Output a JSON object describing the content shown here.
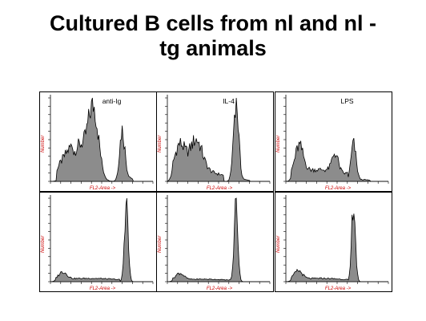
{
  "title": {
    "line1": "Cultured B cells from nl and nl -",
    "line2": "tg animals"
  },
  "colors": {
    "fill": "#8c8c8c",
    "outline": "#000000",
    "axis_label": "#cc0000",
    "frame": "#000000"
  },
  "chart_data": [
    {
      "type": "area",
      "row": 1,
      "col": 1,
      "label": "anti-Ig",
      "xlabel": "FL2-Area ->",
      "ylabel": "Number",
      "xlim": [
        0,
        1
      ],
      "ylim": [
        0,
        1
      ],
      "peaks": [
        {
          "center": 0.28,
          "width": 0.08,
          "height": 0.42
        },
        {
          "center": 0.42,
          "width": 0.05,
          "height": 0.82
        },
        {
          "center": 0.7,
          "width": 0.025,
          "height": 0.62
        }
      ],
      "baseline": [
        {
          "from": 0.06,
          "to": 0.22,
          "level": 0.22
        },
        {
          "from": 0.72,
          "to": 0.8,
          "level": 0.05
        }
      ]
    },
    {
      "type": "area",
      "row": 1,
      "col": 2,
      "label": "IL-4",
      "xlabel": "FL2-Area ->",
      "ylabel": "Number",
      "xlim": [
        0,
        1
      ],
      "ylim": [
        0,
        1
      ],
      "peaks": [
        {
          "center": 0.12,
          "width": 0.05,
          "height": 0.35
        },
        {
          "center": 0.28,
          "width": 0.06,
          "height": 0.38
        },
        {
          "center": 0.67,
          "width": 0.025,
          "height": 0.98
        }
      ],
      "baseline": [
        {
          "from": 0.05,
          "to": 0.55,
          "level": 0.12
        },
        {
          "from": 0.7,
          "to": 0.8,
          "level": 0.02
        }
      ]
    },
    {
      "type": "area",
      "row": 1,
      "col": 3,
      "label": "LPS",
      "xlabel": "FL2-Area ->",
      "ylabel": "Number",
      "xlim": [
        0,
        1
      ],
      "ylim": [
        0,
        1
      ],
      "peaks": [
        {
          "center": 0.13,
          "width": 0.04,
          "height": 0.32
        },
        {
          "center": 0.48,
          "width": 0.03,
          "height": 0.22
        },
        {
          "center": 0.66,
          "width": 0.025,
          "height": 0.45
        }
      ],
      "baseline": [
        {
          "from": 0.05,
          "to": 0.6,
          "level": 0.14
        },
        {
          "from": 0.7,
          "to": 0.82,
          "level": 0.02
        }
      ]
    },
    {
      "type": "area",
      "row": 2,
      "col": 1,
      "label": "",
      "xlabel": "FL2-Area ->",
      "ylabel": "Number",
      "xlim": [
        0,
        1
      ],
      "ylim": [
        0,
        1
      ],
      "peaks": [
        {
          "center": 0.12,
          "width": 0.04,
          "height": 0.09
        },
        {
          "center": 0.74,
          "width": 0.018,
          "height": 0.96
        }
      ],
      "baseline": [
        {
          "from": 0.05,
          "to": 0.68,
          "level": 0.04
        }
      ]
    },
    {
      "type": "area",
      "row": 2,
      "col": 2,
      "label": "",
      "xlabel": "FL2-Area ->",
      "ylabel": "Number",
      "xlim": [
        0,
        1
      ],
      "ylim": [
        0,
        1
      ],
      "peaks": [
        {
          "center": 0.12,
          "width": 0.04,
          "height": 0.08
        },
        {
          "center": 0.67,
          "width": 0.018,
          "height": 0.96
        }
      ],
      "baseline": [
        {
          "from": 0.05,
          "to": 0.62,
          "level": 0.03
        }
      ]
    },
    {
      "type": "area",
      "row": 2,
      "col": 3,
      "label": "",
      "xlabel": "FL2-Area ->",
      "ylabel": "Number",
      "xlim": [
        0,
        1
      ],
      "ylim": [
        0,
        1
      ],
      "peaks": [
        {
          "center": 0.12,
          "width": 0.04,
          "height": 0.1
        },
        {
          "center": 0.66,
          "width": 0.018,
          "height": 0.96
        }
      ],
      "baseline": [
        {
          "from": 0.05,
          "to": 0.6,
          "level": 0.04
        }
      ]
    }
  ]
}
